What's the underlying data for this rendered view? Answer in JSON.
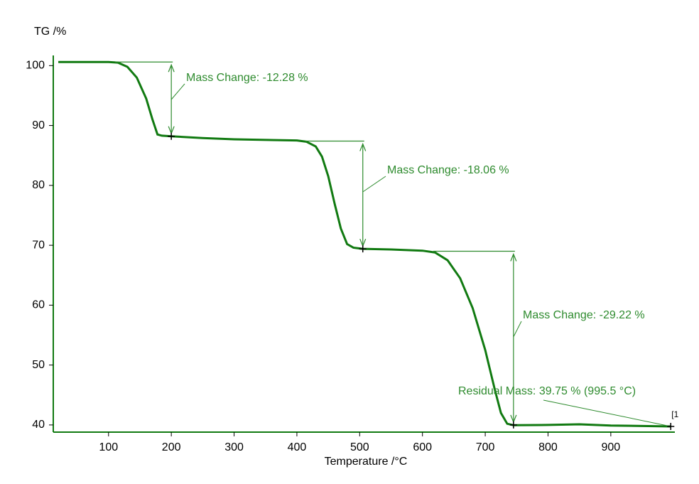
{
  "chart_data": {
    "type": "line",
    "x_label": "Temperature /°C",
    "y_label": "TG /%",
    "xlim": [
      12,
      1002
    ],
    "ylim": [
      38.8,
      101.7
    ],
    "xticks": [
      100,
      200,
      300,
      400,
      500,
      600,
      700,
      800,
      900
    ],
    "yticks": [
      40,
      50,
      60,
      70,
      80,
      90,
      100
    ],
    "series": [
      {
        "name": "[1",
        "color": "#117a11",
        "x": [
          20,
          100,
          115,
          130,
          145,
          160,
          170,
          178,
          185,
          200,
          250,
          300,
          400,
          415,
          430,
          440,
          450,
          460,
          470,
          480,
          490,
          505,
          550,
          600,
          620,
          640,
          660,
          680,
          700,
          715,
          725,
          735,
          745,
          800,
          850,
          900,
          995.5
        ],
        "values": [
          100.6,
          100.6,
          100.5,
          99.8,
          98,
          94.5,
          91,
          88.5,
          88.3,
          88.2,
          87.9,
          87.7,
          87.5,
          87.3,
          86.5,
          84.8,
          81.5,
          77,
          72.8,
          70.2,
          69.6,
          69.4,
          69.3,
          69.1,
          68.8,
          67.5,
          64.5,
          59.5,
          52.5,
          46,
          42,
          40.2,
          39.95,
          40.0,
          40.1,
          39.9,
          39.75
        ]
      }
    ],
    "annotation_color": "#2e8b2e",
    "mass_changes": [
      {
        "text": "Mass Change: -12.28 %",
        "x": 200,
        "from": 100.6,
        "to": 88.2
      },
      {
        "text": "Mass Change: -18.06 %",
        "x": 505,
        "from": 87.4,
        "to": 69.4
      },
      {
        "text": "Mass Change: -29.22 %",
        "x": 745,
        "from": 69.0,
        "to": 40.0
      }
    ],
    "residual": {
      "text": "Residual Mass: 39.75 % (995.5 °C)",
      "x": 995.5,
      "y": 39.75
    }
  }
}
